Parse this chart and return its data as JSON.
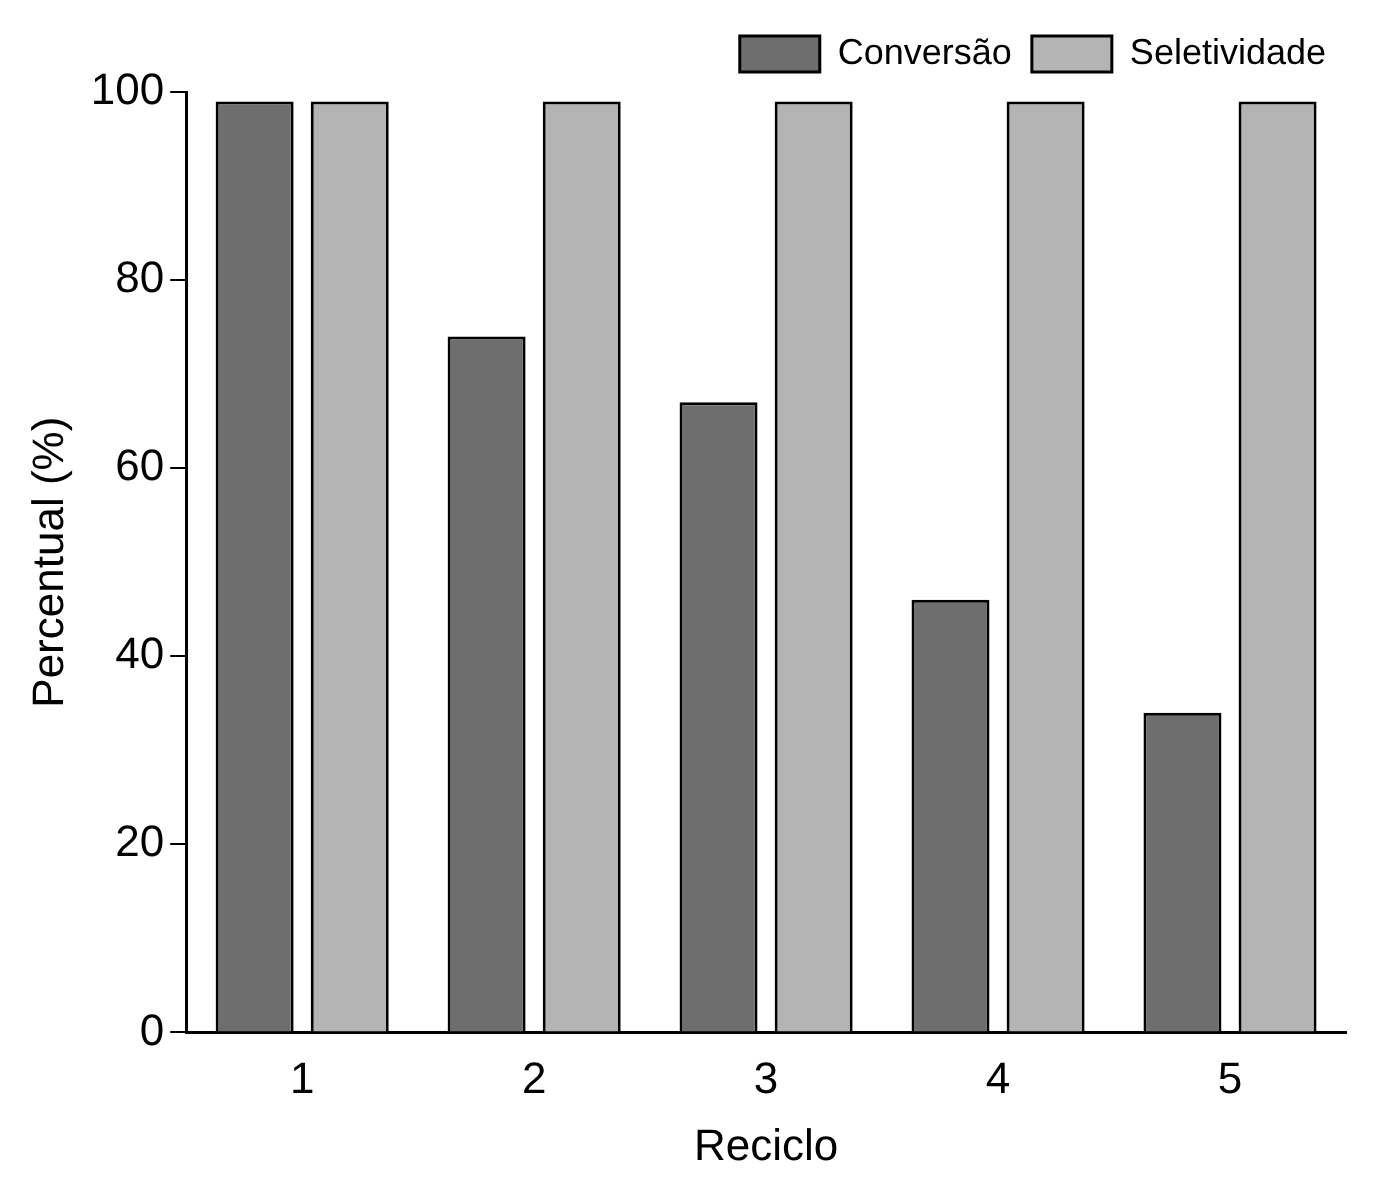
{
  "chart_data": {
    "type": "bar",
    "xlabel": "Reciclo",
    "ylabel": "Percentual (%)",
    "categories": [
      "1",
      "2",
      "3",
      "4",
      "5"
    ],
    "series": [
      {
        "name": "Conversão",
        "color": "#6e6e6e",
        "values": [
          99,
          74,
          67,
          46,
          34
        ]
      },
      {
        "name": "Seletividade",
        "color": "#b4b4b4",
        "values": [
          99,
          99,
          99,
          99,
          99
        ]
      }
    ],
    "ylim": [
      0,
      100
    ],
    "yticks": [
      0,
      20,
      40,
      60,
      80,
      100
    ],
    "grid": false,
    "legend": "top right"
  }
}
